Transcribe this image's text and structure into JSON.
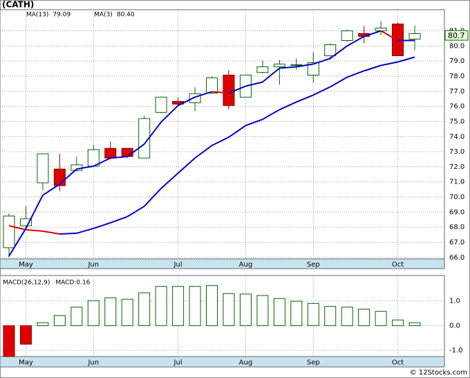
{
  "header": {
    "title": "(CATH)",
    "footer": "© 12Stocks.com"
  },
  "chart_data": [
    {
      "type": "candlestick",
      "categories": [
        null,
        "May",
        null,
        null,
        null,
        "Jun",
        null,
        null,
        null,
        null,
        "Jul",
        null,
        null,
        null,
        "Aug",
        null,
        null,
        null,
        "Sep",
        null,
        null,
        null,
        null,
        "Oct",
        null
      ],
      "open": [
        66.64,
        68.1,
        70.94,
        71.85,
        71.76,
        72.04,
        73.22,
        73.22,
        72.58,
        75.6,
        76.33,
        76.24,
        76.88,
        78.07,
        76.61,
        78.25,
        78.62,
        78.71,
        78.07,
        79.35,
        80.36,
        80.82,
        81.0,
        81.45,
        80.45
      ],
      "high": [
        68.9,
        69.38,
        72.86,
        72.86,
        72.68,
        73.45,
        73.68,
        73.22,
        75.37,
        76.65,
        76.56,
        77.25,
        77.98,
        78.39,
        78.07,
        79.03,
        79.08,
        79.17,
        79.58,
        80.17,
        81.09,
        81.32,
        81.64,
        81.55,
        81.36
      ],
      "low": [
        66.0,
        67.9,
        70.43,
        70.39,
        71.67,
        72.04,
        72.49,
        72.58,
        72.58,
        75.55,
        76.06,
        75.69,
        76.84,
        75.79,
        76.61,
        78.16,
        77.43,
        78.44,
        77.57,
        79.08,
        80.27,
        80.17,
        80.72,
        79.35,
        79.72
      ],
      "close": [
        68.74,
        68.56,
        72.86,
        70.75,
        72.13,
        73.13,
        72.58,
        72.68,
        75.19,
        76.61,
        76.15,
        76.84,
        77.89,
        76.06,
        78.07,
        78.62,
        78.8,
        78.76,
        78.89,
        80.08,
        81.0,
        80.63,
        81.18,
        79.35,
        80.82
      ],
      "series": [
        {
          "name": "MA(13)",
          "current": "79.09",
          "color": "#0000cc",
          "falling_color": "#e00000",
          "values": [
            68.1,
            67.83,
            67.74,
            67.55,
            67.6,
            67.92,
            68.29,
            68.7,
            69.38,
            70.57,
            71.58,
            72.58,
            73.41,
            73.96,
            74.73,
            75.14,
            75.78,
            76.29,
            76.75,
            77.29,
            77.93,
            78.35,
            78.71,
            78.94,
            79.26
          ]
        },
        {
          "name": "MA(3)",
          "current": "80.40",
          "color": "#0000cc",
          "falling_color": "#e00000",
          "values": [
            66.09,
            67.92,
            70.12,
            70.85,
            71.85,
            72.04,
            72.58,
            72.68,
            73.5,
            74.96,
            76.06,
            76.61,
            76.97,
            76.88,
            77.34,
            77.61,
            78.53,
            78.62,
            78.8,
            79.17,
            80.0,
            80.63,
            81.0,
            80.36,
            80.36
          ]
        }
      ],
      "last_price": 80.7,
      "ylim": [
        65.9,
        82.4
      ],
      "yticks": [
        {
          "value": 66,
          "label": "66.0"
        },
        {
          "value": 67,
          "label": "67.0"
        },
        {
          "value": 68,
          "label": "68.0"
        },
        {
          "value": 69,
          "label": "69.0"
        },
        {
          "value": 70,
          "label": "70.0"
        },
        {
          "value": 71,
          "label": "71.0"
        },
        {
          "value": 72,
          "label": "72.0"
        },
        {
          "value": 73,
          "label": "73.0"
        },
        {
          "value": 74,
          "label": "74.0"
        },
        {
          "value": 75,
          "label": "75.0"
        },
        {
          "value": 76,
          "label": "76.0"
        },
        {
          "value": 77,
          "label": "77.0"
        },
        {
          "value": 78,
          "label": "78.0"
        },
        {
          "value": 79,
          "label": "79.0"
        },
        {
          "value": 80,
          "label": "80.0"
        },
        {
          "value": 81,
          "label": "81.0"
        }
      ],
      "grid": true
    },
    {
      "type": "bar",
      "title": "MACD(26,12,9)",
      "current": "MACD:0.16",
      "categories": [
        null,
        "May",
        null,
        null,
        null,
        "Jun",
        null,
        null,
        null,
        null,
        "Jul",
        null,
        null,
        null,
        "Aug",
        null,
        null,
        null,
        "Sep",
        null,
        null,
        null,
        null,
        "Oct",
        null
      ],
      "values": [
        -1.25,
        -0.75,
        0.12,
        0.41,
        0.75,
        1.01,
        1.13,
        1.07,
        1.33,
        1.59,
        1.59,
        1.59,
        1.62,
        1.3,
        1.28,
        1.22,
        1.1,
        0.99,
        0.9,
        0.78,
        0.75,
        0.67,
        0.58,
        0.23,
        0.12
      ],
      "positive_color": "#006400",
      "negative_color": "#e00000",
      "ylim": [
        -1.25,
        2.03
      ],
      "yticks": [
        {
          "value": 1,
          "label": "1.0"
        },
        {
          "value": 0,
          "label": "0.0"
        },
        {
          "value": -1,
          "label": "-1.0"
        }
      ],
      "grid": true
    }
  ]
}
